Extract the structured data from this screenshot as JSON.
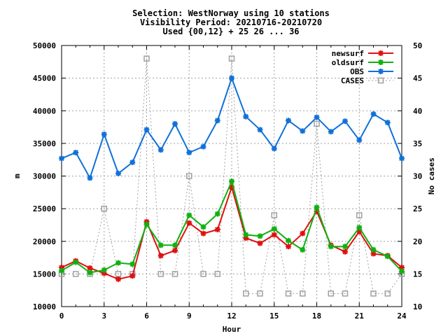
{
  "chart_data": {
    "type": "line",
    "title_lines": [
      "Selection: WestNorway using    10 stations",
      "Visibility   Period: 20210716-20210720",
      "Used {00,12} + 25 26 ... 36"
    ],
    "xlabel": "Hour",
    "ylabel": "m",
    "y2label": "No cases",
    "xlim": [
      0,
      24
    ],
    "ylim": [
      10000,
      50000
    ],
    "y2lim": [
      10,
      50
    ],
    "xticks": [
      0,
      3,
      6,
      9,
      12,
      15,
      18,
      21,
      24
    ],
    "yticks": [
      10000,
      15000,
      20000,
      25000,
      30000,
      35000,
      40000,
      45000,
      50000
    ],
    "y2ticks": [
      10,
      15,
      20,
      25,
      30,
      35,
      40,
      45,
      50
    ],
    "grid": true,
    "legend_position": "top-right",
    "x": [
      0,
      1,
      2,
      3,
      4,
      5,
      6,
      7,
      8,
      9,
      10,
      11,
      12,
      13,
      14,
      15,
      16,
      17,
      18,
      19,
      20,
      21,
      22,
      23,
      24
    ],
    "series": [
      {
        "name": "newsurf",
        "color": "#e01010",
        "marker": "cross",
        "axis": "y",
        "values": [
          16000,
          17000,
          15900,
          15100,
          14200,
          14700,
          23000,
          17800,
          18600,
          22800,
          21200,
          21800,
          28300,
          20500,
          19700,
          21000,
          19200,
          21200,
          24600,
          19400,
          18400,
          21500,
          18100,
          17800,
          16000
        ]
      },
      {
        "name": "oldsurf",
        "color": "#10b010",
        "marker": "cross",
        "axis": "y",
        "values": [
          15500,
          16800,
          15200,
          15600,
          16700,
          16500,
          22600,
          19400,
          19400,
          24000,
          22200,
          24200,
          29200,
          21000,
          20800,
          21900,
          20100,
          18700,
          25200,
          19200,
          19200,
          22100,
          18700,
          17700,
          15400
        ]
      },
      {
        "name": "OBS",
        "color": "#1070d8",
        "marker": "cross",
        "axis": "y",
        "values": [
          32700,
          33600,
          29700,
          36400,
          30400,
          32100,
          37100,
          34000,
          38000,
          33600,
          34500,
          38500,
          45000,
          39100,
          37100,
          34200,
          38500,
          36900,
          39000,
          36800,
          38400,
          35500,
          39500,
          38200,
          32700
        ]
      },
      {
        "name": "CASES",
        "color": "#a0a0a0",
        "marker": "square",
        "axis": "y2",
        "values": [
          15,
          15,
          15,
          25,
          15,
          15,
          48,
          15,
          15,
          30,
          15,
          15,
          48,
          12,
          12,
          24,
          12,
          12,
          38,
          12,
          12,
          24,
          12,
          12,
          15
        ]
      }
    ]
  }
}
